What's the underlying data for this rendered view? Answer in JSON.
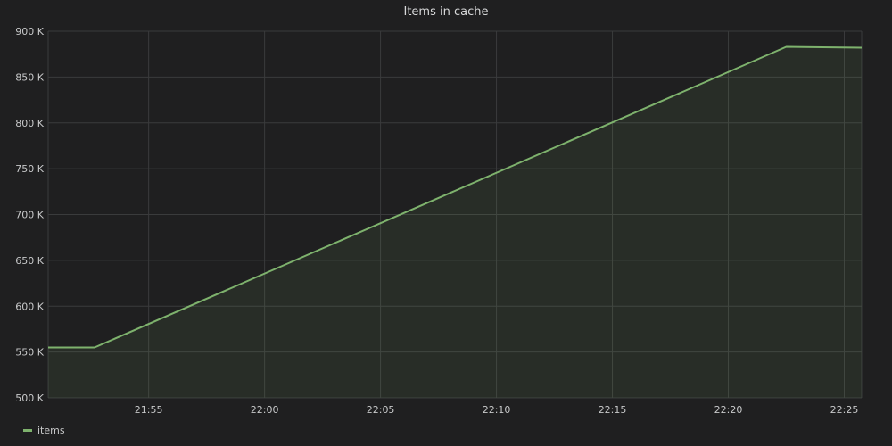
{
  "chart_data": {
    "type": "area",
    "title": "Items in cache",
    "xlabel": "",
    "ylabel": "",
    "ylim": [
      500,
      900
    ],
    "y_ticks": [
      500,
      550,
      600,
      650,
      700,
      750,
      800,
      850,
      900
    ],
    "y_tick_labels": [
      "500 K",
      "550 K",
      "600 K",
      "650 K",
      "700 K",
      "750 K",
      "800 K",
      "850 K",
      "900 K"
    ],
    "xlim": [
      "21:50:40",
      "22:25:45"
    ],
    "x_ticks": [
      "21:55",
      "22:00",
      "22:05",
      "22:10",
      "22:15",
      "22:20",
      "22:25"
    ],
    "grid": true,
    "legend_position": "bottom-left",
    "series": [
      {
        "name": "items",
        "color": "#7eb26d",
        "x": [
          "21:50:40",
          "21:52:40",
          "22:22:30",
          "22:25:45"
        ],
        "y": [
          555,
          555,
          883,
          882
        ]
      }
    ]
  }
}
